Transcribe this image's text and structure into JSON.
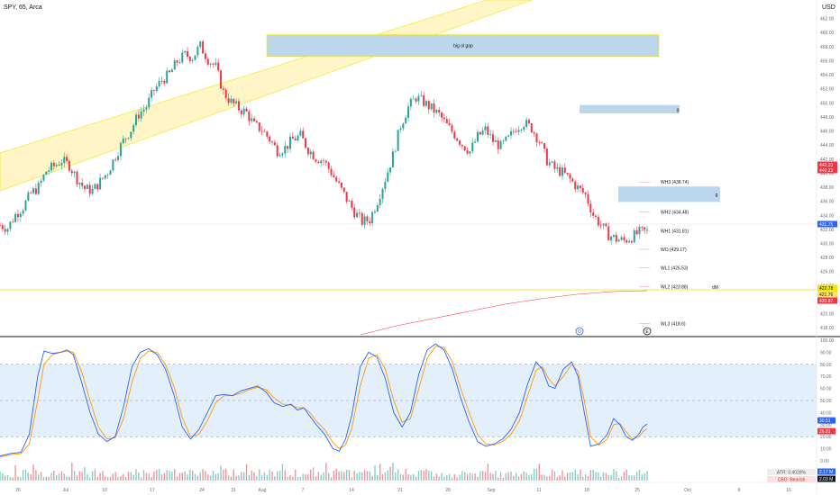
{
  "header": {
    "symbol": "SPY, 65, Arca",
    "currency": "USD"
  },
  "chart_data": {
    "type": "candlestick",
    "price_axis": {
      "ylim": [
        417,
        464
      ],
      "ticks": [
        462,
        460,
        458,
        456,
        454,
        452,
        450,
        448,
        446,
        444,
        442,
        440,
        438,
        436,
        434,
        432,
        430,
        428,
        426,
        424,
        422,
        420,
        418
      ],
      "labels": [
        "462.00",
        "460.00",
        "458.00",
        "456.00",
        "454.00",
        "452.00",
        "450.00",
        "448.00",
        "446.00",
        "444.00",
        "442.00",
        "440.00",
        "438.00",
        "436.00",
        "434.00",
        "432.00",
        "430.00",
        "428.00",
        "426.00",
        "424.00",
        "422.00",
        "420.00",
        "418.00"
      ]
    },
    "price_badges": [
      {
        "value": 440.23,
        "label": "440.23",
        "color": "#f23645"
      },
      {
        "value": 440.23,
        "label": "440.23",
        "color": "#f23645"
      },
      {
        "value": 431.75,
        "label": "431.75",
        "color": "#2962ff"
      },
      {
        "value": 422.78,
        "label": "422.78",
        "color": "#f2e600"
      },
      {
        "value": 421.76,
        "label": "421.76",
        "color": "#ffe06b"
      },
      {
        "value": 420.87,
        "label": "420.87",
        "color": "#f23645"
      }
    ],
    "time_axis": {
      "labels": [
        "26",
        "Jul",
        "10",
        "17",
        "24",
        "31",
        "Aug",
        "7",
        "14",
        "21",
        "28",
        "Sep",
        "11",
        "18",
        "25",
        "Oct",
        "9",
        "16"
      ]
    },
    "candles_approx": [
      [
        0,
        432.6
      ],
      [
        6,
        432.2
      ],
      [
        12,
        434.1
      ],
      [
        18,
        435.2
      ],
      [
        24,
        437.1
      ],
      [
        30,
        438.0
      ],
      [
        36,
        440.3
      ],
      [
        42,
        441.0
      ],
      [
        48,
        441.8
      ],
      [
        54,
        441.1
      ],
      [
        60,
        439.2
      ],
      [
        66,
        437.8
      ],
      [
        72,
        437.5
      ],
      [
        78,
        438.8
      ],
      [
        84,
        440.2
      ],
      [
        90,
        442.5
      ],
      [
        96,
        444.6
      ],
      [
        102,
        446.2
      ],
      [
        108,
        448.4
      ],
      [
        114,
        449.5
      ],
      [
        120,
        451.8
      ],
      [
        126,
        453.2
      ],
      [
        132,
        454.1
      ],
      [
        138,
        455.9
      ],
      [
        144,
        456.8
      ],
      [
        150,
        456.5
      ],
      [
        156,
        458.1
      ],
      [
        162,
        456.2
      ],
      [
        168,
        455.1
      ],
      [
        174,
        451.5
      ],
      [
        180,
        450.1
      ],
      [
        186,
        449.2
      ],
      [
        192,
        448.6
      ],
      [
        198,
        446.8
      ],
      [
        204,
        446.2
      ],
      [
        210,
        444.8
      ],
      [
        216,
        443.2
      ],
      [
        222,
        443.6
      ],
      [
        228,
        444.8
      ],
      [
        234,
        445.3
      ],
      [
        240,
        443.4
      ],
      [
        246,
        442.2
      ],
      [
        252,
        441.8
      ],
      [
        258,
        440.1
      ],
      [
        264,
        438.2
      ],
      [
        270,
        436.3
      ],
      [
        276,
        434.5
      ],
      [
        282,
        433.1
      ],
      [
        288,
        433.4
      ],
      [
        294,
        436.1
      ],
      [
        300,
        439.2
      ],
      [
        306,
        442.5
      ],
      [
        312,
        446.8
      ],
      [
        318,
        449.4
      ],
      [
        324,
        450.8
      ],
      [
        330,
        450.1
      ],
      [
        336,
        449.2
      ],
      [
        342,
        448.3
      ],
      [
        348,
        446.8
      ],
      [
        354,
        445.5
      ],
      [
        360,
        444.1
      ],
      [
        366,
        443.1
      ],
      [
        372,
        445.2
      ],
      [
        378,
        446.2
      ],
      [
        384,
        444.6
      ],
      [
        390,
        443.8
      ],
      [
        396,
        444.9
      ],
      [
        402,
        446.5
      ],
      [
        408,
        447.2
      ],
      [
        414,
        446.4
      ],
      [
        420,
        444.6
      ],
      [
        426,
        441.8
      ],
      [
        432,
        440.6
      ],
      [
        438,
        440.1
      ],
      [
        444,
        439.1
      ],
      [
        450,
        437.9
      ],
      [
        456,
        436.9
      ],
      [
        462,
        434.1
      ],
      [
        468,
        432.6
      ],
      [
        474,
        431.2
      ],
      [
        480,
        430.6
      ],
      [
        486,
        430.4
      ],
      [
        492,
        430.9
      ],
      [
        498,
        431.6
      ],
      [
        504,
        431.75
      ]
    ],
    "stochastic_axis": {
      "ylim": [
        0,
        100
      ],
      "labels": [
        {
          "v": 100,
          "t": "100.00"
        },
        {
          "v": 90,
          "t": "90.00"
        },
        {
          "v": 80,
          "t": "80.00"
        },
        {
          "v": 70,
          "t": "70.00"
        },
        {
          "v": 60,
          "t": "60.00"
        },
        {
          "v": 50,
          "t": "50.00"
        },
        {
          "v": 40,
          "t": "40.00"
        },
        {
          "v": 30,
          "t": "30.00"
        },
        {
          "v": 20,
          "t": "20.00"
        },
        {
          "v": 10,
          "t": "10.00"
        },
        {
          "v": 0,
          "t": "0.00"
        }
      ]
    },
    "stochastic_badges": [
      {
        "value": 30.51,
        "label": "30.51",
        "color": "#2962ff"
      },
      {
        "value": 26.81,
        "label": "26.81",
        "color": "#f23645"
      }
    ],
    "stochastic_k": [
      [
        0,
        4
      ],
      [
        10,
        6
      ],
      [
        20,
        7
      ],
      [
        28,
        22
      ],
      [
        36,
        70
      ],
      [
        42,
        91
      ],
      [
        50,
        89
      ],
      [
        58,
        90
      ],
      [
        64,
        92
      ],
      [
        70,
        88
      ],
      [
        78,
        65
      ],
      [
        86,
        40
      ],
      [
        94,
        22
      ],
      [
        102,
        16
      ],
      [
        110,
        20
      ],
      [
        118,
        45
      ],
      [
        126,
        78
      ],
      [
        134,
        90
      ],
      [
        142,
        93
      ],
      [
        150,
        88
      ],
      [
        158,
        76
      ],
      [
        166,
        55
      ],
      [
        174,
        28
      ],
      [
        182,
        18
      ],
      [
        190,
        26
      ],
      [
        198,
        40
      ],
      [
        206,
        54
      ],
      [
        214,
        55
      ],
      [
        222,
        54
      ],
      [
        230,
        58
      ],
      [
        238,
        60
      ],
      [
        246,
        62
      ],
      [
        254,
        57
      ],
      [
        262,
        48
      ],
      [
        270,
        45
      ],
      [
        278,
        47
      ],
      [
        284,
        42
      ],
      [
        290,
        44
      ],
      [
        296,
        37
      ],
      [
        302,
        30
      ],
      [
        310,
        22
      ],
      [
        318,
        10
      ],
      [
        324,
        8
      ],
      [
        330,
        18
      ],
      [
        336,
        38
      ],
      [
        344,
        78
      ],
      [
        352,
        90
      ],
      [
        360,
        86
      ],
      [
        368,
        68
      ],
      [
        376,
        40
      ],
      [
        384,
        28
      ],
      [
        392,
        40
      ],
      [
        400,
        72
      ],
      [
        408,
        92
      ],
      [
        416,
        97
      ],
      [
        424,
        92
      ],
      [
        432,
        76
      ],
      [
        440,
        52
      ],
      [
        448,
        32
      ],
      [
        456,
        16
      ],
      [
        464,
        12
      ],
      [
        472,
        14
      ],
      [
        480,
        18
      ],
      [
        488,
        26
      ],
      [
        496,
        40
      ],
      [
        504,
        64
      ],
      [
        512,
        82
      ],
      [
        518,
        76
      ],
      [
        524,
        62
      ],
      [
        530,
        60
      ],
      [
        538,
        76
      ],
      [
        546,
        82
      ],
      [
        552,
        70
      ],
      [
        558,
        40
      ],
      [
        564,
        12
      ],
      [
        572,
        14
      ],
      [
        580,
        22
      ],
      [
        586,
        35
      ],
      [
        592,
        30
      ],
      [
        598,
        20
      ],
      [
        604,
        17
      ],
      [
        610,
        22
      ],
      [
        614,
        28
      ],
      [
        618,
        30.51
      ]
    ],
    "stochastic_d": [
      [
        0,
        3
      ],
      [
        10,
        5
      ],
      [
        20,
        6
      ],
      [
        28,
        14
      ],
      [
        36,
        50
      ],
      [
        42,
        80
      ],
      [
        50,
        88
      ],
      [
        58,
        90
      ],
      [
        64,
        91
      ],
      [
        70,
        90
      ],
      [
        78,
        74
      ],
      [
        86,
        50
      ],
      [
        94,
        28
      ],
      [
        102,
        18
      ],
      [
        110,
        19
      ],
      [
        118,
        35
      ],
      [
        126,
        65
      ],
      [
        134,
        85
      ],
      [
        142,
        91
      ],
      [
        150,
        90
      ],
      [
        158,
        80
      ],
      [
        166,
        62
      ],
      [
        174,
        36
      ],
      [
        182,
        20
      ],
      [
        190,
        22
      ],
      [
        198,
        33
      ],
      [
        206,
        48
      ],
      [
        214,
        54
      ],
      [
        222,
        54
      ],
      [
        230,
        56
      ],
      [
        238,
        59
      ],
      [
        246,
        61
      ],
      [
        254,
        59
      ],
      [
        262,
        52
      ],
      [
        270,
        47
      ],
      [
        278,
        46
      ],
      [
        284,
        44
      ],
      [
        290,
        44
      ],
      [
        296,
        40
      ],
      [
        302,
        33
      ],
      [
        310,
        26
      ],
      [
        318,
        15
      ],
      [
        324,
        10
      ],
      [
        330,
        13
      ],
      [
        336,
        27
      ],
      [
        344,
        62
      ],
      [
        352,
        85
      ],
      [
        360,
        88
      ],
      [
        368,
        76
      ],
      [
        376,
        50
      ],
      [
        384,
        32
      ],
      [
        392,
        35
      ],
      [
        400,
        60
      ],
      [
        408,
        85
      ],
      [
        416,
        95
      ],
      [
        424,
        94
      ],
      [
        432,
        82
      ],
      [
        440,
        60
      ],
      [
        448,
        40
      ],
      [
        456,
        22
      ],
      [
        464,
        14
      ],
      [
        472,
        13
      ],
      [
        480,
        16
      ],
      [
        488,
        22
      ],
      [
        496,
        33
      ],
      [
        504,
        54
      ],
      [
        512,
        75
      ],
      [
        518,
        78
      ],
      [
        524,
        68
      ],
      [
        530,
        62
      ],
      [
        538,
        70
      ],
      [
        546,
        80
      ],
      [
        552,
        74
      ],
      [
        558,
        50
      ],
      [
        564,
        20
      ],
      [
        572,
        13
      ],
      [
        580,
        18
      ],
      [
        586,
        30
      ],
      [
        592,
        31
      ],
      [
        598,
        24
      ],
      [
        604,
        18
      ],
      [
        610,
        20
      ],
      [
        614,
        24
      ],
      [
        618,
        26.81
      ]
    ],
    "indicators": [
      {
        "label": "ATR: 0.4028%",
        "bg": "#eeeeee",
        "color": "#555555"
      },
      {
        "label": "CBO: Bearish",
        "bg": "#fde0e0",
        "color": "#c62828"
      }
    ],
    "volume_badges": [
      {
        "label": "2.17 M",
        "color": "#2962ff"
      },
      {
        "label": "2.03 M",
        "color": "#131722"
      }
    ]
  },
  "annotations": {
    "zones": [
      {
        "label": "big ol gap",
        "y_top": 459.7,
        "y_bottom": 456.6,
        "color": "#bcd6ec"
      },
      {
        "label": "g",
        "y_top": 449.7,
        "y_bottom": 448.5,
        "color": "#bcd6ec"
      },
      {
        "label": "g",
        "y_top": 438.1,
        "y_bottom": 435.9,
        "color": "#bcd6ec"
      }
    ],
    "levels": [
      {
        "label": "WH3 (438.74)",
        "value": 438.74
      },
      {
        "label": "WH2 (434.48)",
        "value": 434.48
      },
      {
        "label": "WH1 (431.81)",
        "value": 431.81
      },
      {
        "label": "WO (429.17)",
        "value": 429.17
      },
      {
        "label": "WL1 (426.53)",
        "value": 426.53
      },
      {
        "label": "WL2 (423.88)",
        "value": 423.88
      },
      {
        "label": "WL3 (418.6)",
        "value": 418.6
      }
    ],
    "dm_label": "dM",
    "markers": [
      "D",
      "E"
    ]
  },
  "colors": {
    "up": "#26a69a",
    "down": "#f23645",
    "k_line": "#2962ff",
    "d_line": "#ff9800",
    "channel": "#fff5c4",
    "channel_edge": "#f2e600"
  }
}
